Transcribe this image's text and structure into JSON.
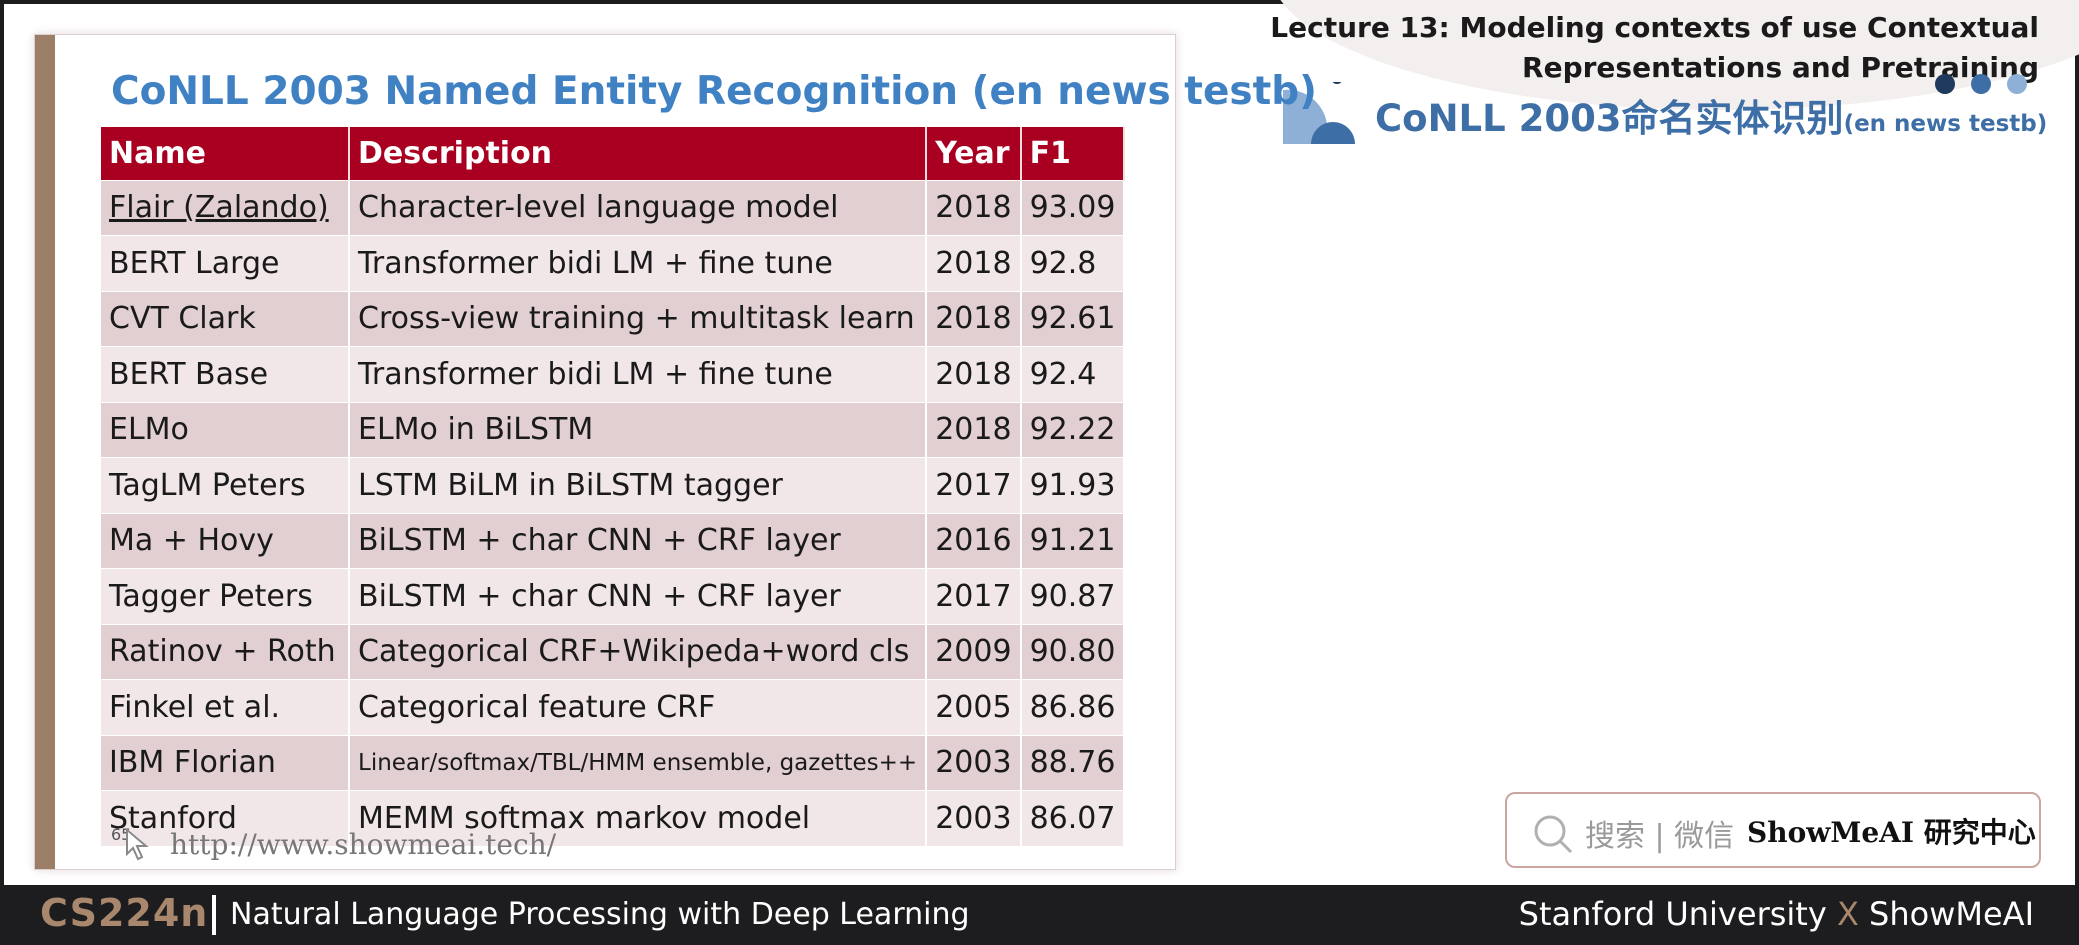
{
  "header": {
    "lecture_title_line1": "Lecture 13: Modeling contexts of use Contextual",
    "lecture_title_line2": "Representations and Pretraining",
    "cn_title_main": "CoNLL 2003命名实体识别",
    "cn_title_small": "(en news testb)"
  },
  "colors": {
    "accent_blue": "#3f81c3",
    "header_red": "#a90021",
    "bar_brown": "#9b7e66",
    "footer_bg": "#1d1d1f",
    "dots": [
      "#1f3a5c",
      "#3e6ea6",
      "#8fb0d6"
    ]
  },
  "slide": {
    "title": "CoNLL 2003 Named Entity Recognition (en news testb)",
    "columns": [
      "Name",
      "Description",
      "Year",
      "F1"
    ],
    "rows": [
      {
        "name": "Flair (Zalando)",
        "description": "Character-level language model",
        "year": "2018",
        "f1": "93.09"
      },
      {
        "name": "BERT Large",
        "description": "Transformer bidi LM + fine tune",
        "year": "2018",
        "f1": "92.8"
      },
      {
        "name": "CVT Clark",
        "description": "Cross-view training + multitask learn",
        "year": "2018",
        "f1": "92.61"
      },
      {
        "name": "BERT Base",
        "description": "Transformer bidi LM + fine tune",
        "year": "2018",
        "f1": "92.4"
      },
      {
        "name": "ELMo",
        "description": "ELMo in BiLSTM",
        "year": "2018",
        "f1": "92.22"
      },
      {
        "name": "TagLM Peters",
        "description": "LSTM BiLM in BiLSTM tagger",
        "year": "2017",
        "f1": "91.93"
      },
      {
        "name": "Ma + Hovy",
        "description": "BiLSTM + char CNN + CRF layer",
        "year": "2016",
        "f1": "91.21"
      },
      {
        "name": "Tagger Peters",
        "description": "BiLSTM + char CNN + CRF layer",
        "year": "2017",
        "f1": "90.87"
      },
      {
        "name": "Ratinov + Roth",
        "description": "Categorical CRF+Wikipeda+word cls",
        "year": "2009",
        "f1": "90.80"
      },
      {
        "name": "Finkel et al.",
        "description": "Categorical feature CRF",
        "year": "2005",
        "f1": "86.86"
      },
      {
        "name": "IBM Florian",
        "description": "Linear/softmax/TBL/HMM ensemble, gazettes++",
        "year": "2003",
        "f1": "88.76"
      },
      {
        "name": "Stanford",
        "description": "MEMM softmax markov model",
        "year": "2003",
        "f1": "86.07"
      }
    ],
    "page_number": "65",
    "url": "http://www.showmeai.tech/"
  },
  "search": {
    "label": "搜索 | 微信",
    "brand": "ShowMeAI 研究中心",
    "icon": "search-icon"
  },
  "footer": {
    "course": "CS224n",
    "subtitle": "Natural Language Processing with Deep Learning",
    "right_left": "Stanford University",
    "right_x": "X",
    "right_right": "ShowMeAI"
  }
}
